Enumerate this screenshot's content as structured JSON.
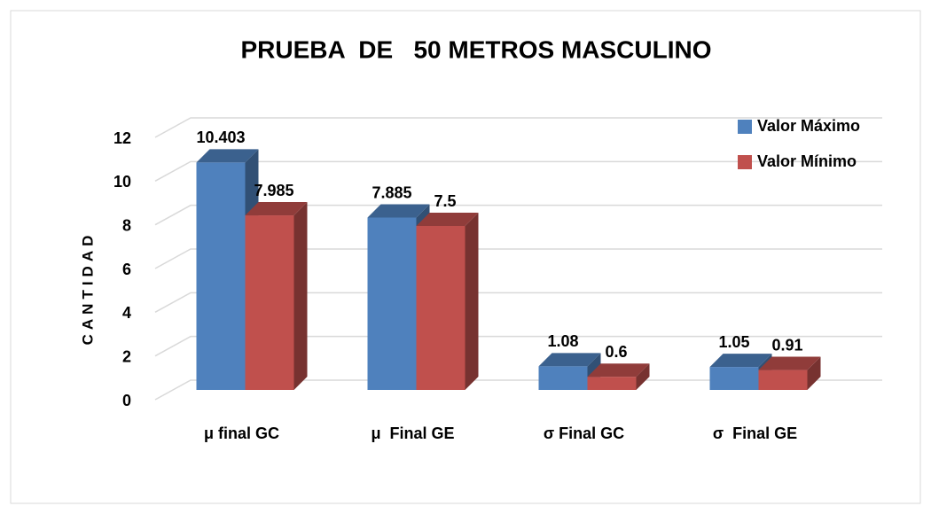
{
  "chart_data": {
    "type": "bar3d",
    "title": "PRUEBA  DE   50 METROS MASCULINO",
    "y_label": "CANTIDAD",
    "categories": [
      "μ final GC",
      "μ  Final GE",
      "σ Final GC",
      "σ  Final GE"
    ],
    "series": [
      {
        "name": "Valor Máximo",
        "color": "#4f81bd",
        "values": [
          10.403,
          7.885,
          1.08,
          1.05
        ]
      },
      {
        "name": "Valor Mínimo",
        "color": "#c0504d",
        "values": [
          7.985,
          7.5,
          0.6,
          0.91
        ]
      }
    ],
    "ylim": [
      0,
      12
    ],
    "yticks": [
      0,
      2,
      4,
      6,
      8,
      10,
      12
    ],
    "grid": true,
    "legend": "top-right"
  }
}
